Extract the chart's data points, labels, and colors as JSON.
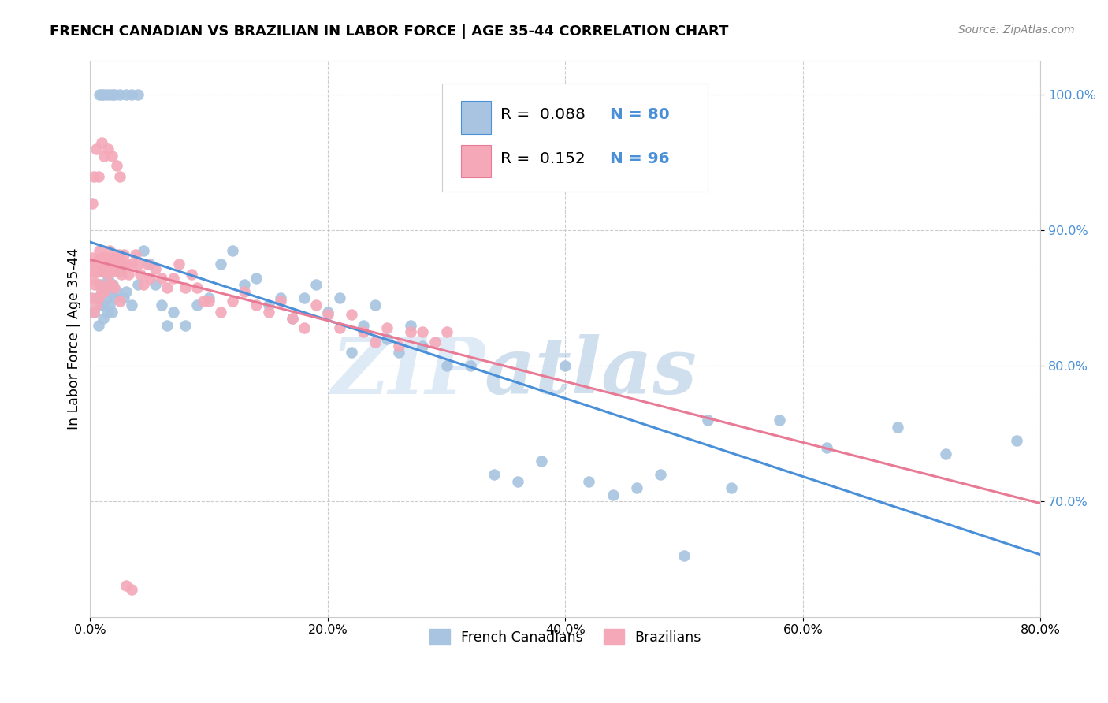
{
  "title": "FRENCH CANADIAN VS BRAZILIAN IN LABOR FORCE | AGE 35-44 CORRELATION CHART",
  "source": "Source: ZipAtlas.com",
  "ylabel": "In Labor Force | Age 35-44",
  "xlim": [
    0.0,
    0.8
  ],
  "ylim": [
    0.615,
    1.025
  ],
  "ytick_labels": [
    "70.0%",
    "80.0%",
    "90.0%",
    "100.0%"
  ],
  "ytick_values": [
    0.7,
    0.8,
    0.9,
    1.0
  ],
  "xtick_labels": [
    "0.0%",
    "20.0%",
    "40.0%",
    "60.0%",
    "80.0%"
  ],
  "xtick_values": [
    0.0,
    0.2,
    0.4,
    0.6,
    0.8
  ],
  "legend_labels": [
    "French Canadians",
    "Brazilians"
  ],
  "blue_color": "#a8c4e0",
  "pink_color": "#f4a8b8",
  "blue_line_color": "#4a90d9",
  "pink_line_color": "#e87a95",
  "R_blue": 0.088,
  "N_blue": 80,
  "R_pink": 0.152,
  "N_pink": 96,
  "watermark_text": "ZIP",
  "watermark_text2": "atlas",
  "blue_x": [
    0.003,
    0.005,
    0.007,
    0.008,
    0.009,
    0.01,
    0.01,
    0.011,
    0.012,
    0.012,
    0.013,
    0.014,
    0.015,
    0.015,
    0.016,
    0.017,
    0.018,
    0.019,
    0.02,
    0.022,
    0.025,
    0.028,
    0.03,
    0.035,
    0.04,
    0.045,
    0.05,
    0.055,
    0.06,
    0.065,
    0.07,
    0.08,
    0.09,
    0.1,
    0.11,
    0.12,
    0.13,
    0.14,
    0.15,
    0.16,
    0.17,
    0.18,
    0.19,
    0.2,
    0.21,
    0.22,
    0.23,
    0.24,
    0.25,
    0.26,
    0.27,
    0.28,
    0.3,
    0.32,
    0.34,
    0.36,
    0.38,
    0.4,
    0.42,
    0.44,
    0.46,
    0.48,
    0.5,
    0.52,
    0.54,
    0.58,
    0.62,
    0.68,
    0.72,
    0.78,
    0.008,
    0.01,
    0.012,
    0.015,
    0.018,
    0.02,
    0.025,
    0.03,
    0.035,
    0.04
  ],
  "blue_y": [
    0.84,
    0.85,
    0.83,
    0.86,
    0.845,
    0.855,
    0.87,
    0.835,
    0.86,
    0.845,
    0.855,
    0.84,
    0.865,
    0.85,
    0.845,
    0.855,
    0.84,
    0.86,
    0.85,
    0.855,
    0.87,
    0.85,
    0.855,
    0.845,
    0.86,
    0.885,
    0.875,
    0.86,
    0.845,
    0.83,
    0.84,
    0.83,
    0.845,
    0.85,
    0.875,
    0.885,
    0.86,
    0.865,
    0.845,
    0.85,
    0.835,
    0.85,
    0.86,
    0.84,
    0.85,
    0.81,
    0.83,
    0.845,
    0.82,
    0.81,
    0.83,
    0.815,
    0.8,
    0.8,
    0.72,
    0.715,
    0.73,
    0.8,
    0.715,
    0.705,
    0.71,
    0.72,
    0.66,
    0.76,
    0.71,
    0.76,
    0.74,
    0.755,
    0.735,
    0.745,
    1.0,
    1.0,
    1.0,
    1.0,
    1.0,
    1.0,
    1.0,
    1.0,
    1.0,
    1.0
  ],
  "pink_x": [
    0.001,
    0.002,
    0.003,
    0.003,
    0.004,
    0.005,
    0.005,
    0.006,
    0.007,
    0.007,
    0.008,
    0.008,
    0.009,
    0.01,
    0.01,
    0.011,
    0.012,
    0.012,
    0.013,
    0.014,
    0.015,
    0.015,
    0.016,
    0.017,
    0.018,
    0.019,
    0.02,
    0.021,
    0.022,
    0.023,
    0.024,
    0.025,
    0.026,
    0.027,
    0.028,
    0.03,
    0.032,
    0.035,
    0.038,
    0.04,
    0.042,
    0.045,
    0.048,
    0.05,
    0.055,
    0.06,
    0.065,
    0.07,
    0.075,
    0.08,
    0.085,
    0.09,
    0.095,
    0.1,
    0.11,
    0.12,
    0.13,
    0.14,
    0.15,
    0.16,
    0.17,
    0.18,
    0.19,
    0.2,
    0.21,
    0.22,
    0.23,
    0.24,
    0.25,
    0.26,
    0.27,
    0.28,
    0.29,
    0.3,
    0.002,
    0.003,
    0.005,
    0.007,
    0.01,
    0.012,
    0.015,
    0.018,
    0.022,
    0.025,
    0.002,
    0.003,
    0.005,
    0.007,
    0.009,
    0.012,
    0.015,
    0.018,
    0.02,
    0.025,
    0.03,
    0.035
  ],
  "pink_y": [
    0.85,
    0.865,
    0.875,
    0.84,
    0.86,
    0.875,
    0.845,
    0.87,
    0.875,
    0.85,
    0.885,
    0.86,
    0.87,
    0.88,
    0.855,
    0.875,
    0.87,
    0.855,
    0.875,
    0.87,
    0.88,
    0.86,
    0.885,
    0.875,
    0.87,
    0.878,
    0.88,
    0.872,
    0.875,
    0.87,
    0.882,
    0.875,
    0.868,
    0.875,
    0.882,
    0.875,
    0.868,
    0.875,
    0.882,
    0.875,
    0.868,
    0.86,
    0.875,
    0.865,
    0.872,
    0.865,
    0.858,
    0.865,
    0.875,
    0.858,
    0.868,
    0.858,
    0.848,
    0.848,
    0.84,
    0.848,
    0.855,
    0.845,
    0.84,
    0.848,
    0.835,
    0.828,
    0.845,
    0.838,
    0.828,
    0.838,
    0.825,
    0.818,
    0.828,
    0.815,
    0.825,
    0.825,
    0.818,
    0.825,
    0.92,
    0.94,
    0.96,
    0.94,
    0.965,
    0.955,
    0.96,
    0.955,
    0.948,
    0.94,
    0.88,
    0.87,
    0.875,
    0.878,
    0.875,
    0.87,
    0.868,
    0.86,
    0.858,
    0.848,
    0.638,
    0.635
  ]
}
